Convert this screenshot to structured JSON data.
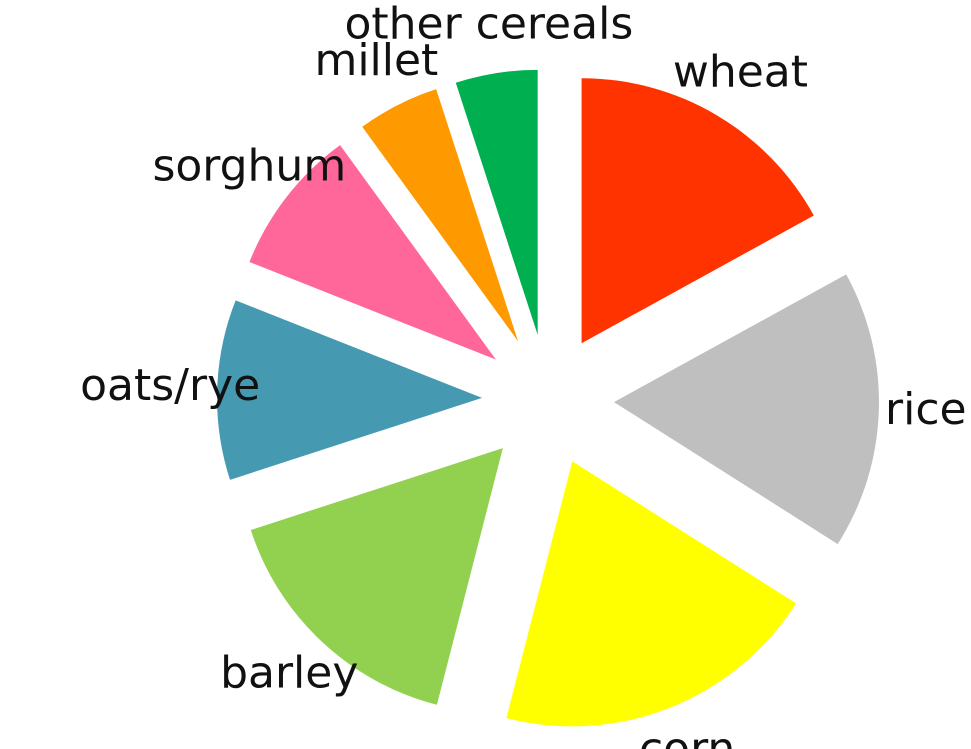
{
  "chart_data": {
    "type": "pie",
    "exploded": true,
    "categories": [
      "wheat",
      "rice",
      "corn",
      "barley",
      "oats/rye",
      "sorghum",
      "millet",
      "other cereals"
    ],
    "values": [
      17,
      17,
      20,
      16,
      11,
      9,
      5,
      5
    ],
    "colors": [
      "#ff3300",
      "#bfbfbf",
      "#ffff00",
      "#92d050",
      "#4599b0",
      "#ff6699",
      "#ff9900",
      "#00b050"
    ]
  }
}
